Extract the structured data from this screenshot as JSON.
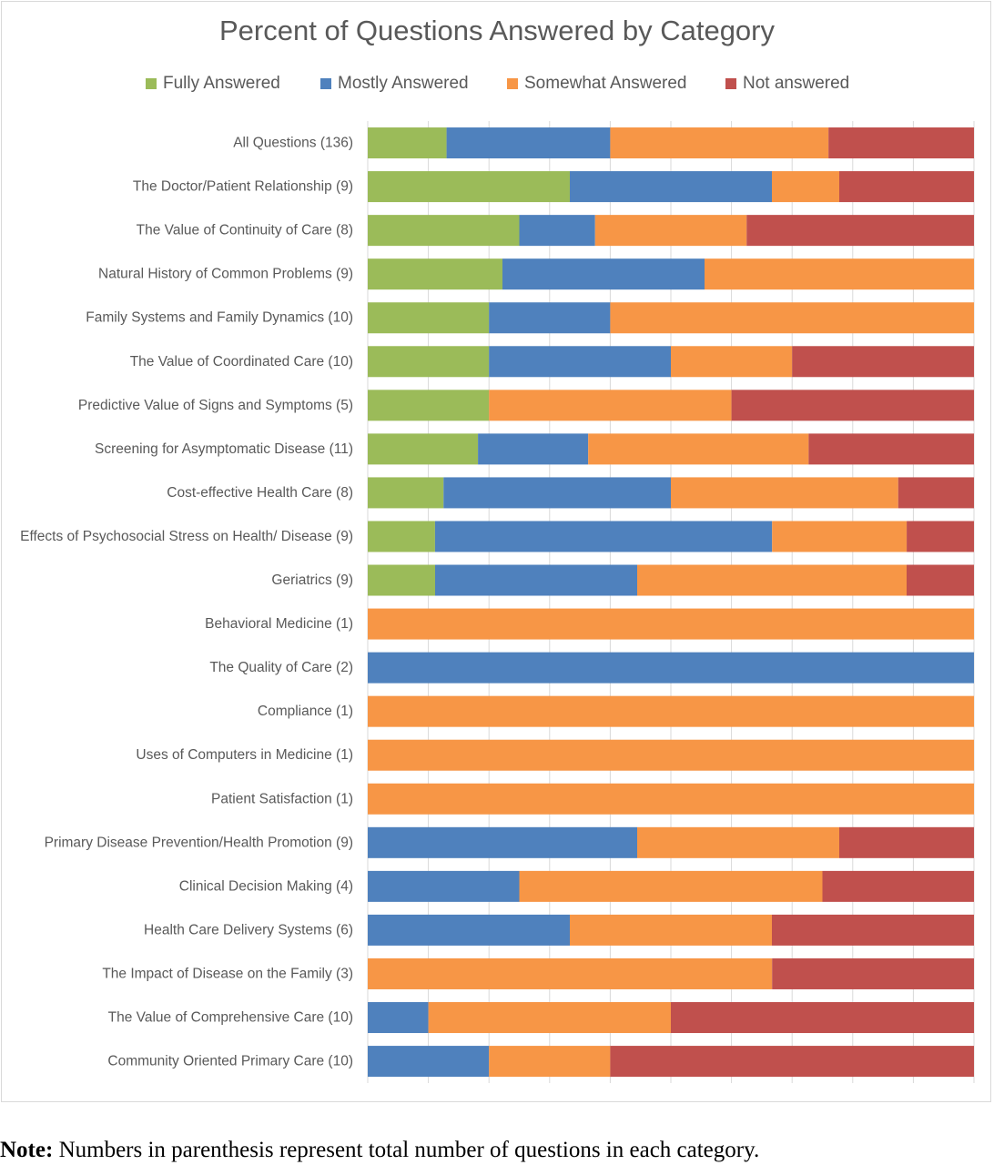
{
  "chart_data": {
    "type": "bar",
    "orientation": "horizontal",
    "stacked": true,
    "normalized": "100%",
    "title": "Percent of Questions Answered by Category",
    "legend_position": "top",
    "grid": "vertical",
    "xlim": [
      0,
      100
    ],
    "categories": [
      "All Questions (136)",
      "The Doctor/Patient Relationship (9)",
      "The Value of Continuity of Care (8)",
      "Natural History of Common Problems (9)",
      "Family Systems and Family Dynamics (10)",
      "The Value of Coordinated Care (10)",
      "Predictive Value of Signs and Symptoms (5)",
      "Screening for Asymptomatic Disease (11)",
      "Cost-effective Health Care (8)",
      "Effects of Psychosocial Stress on Health/ Disease (9)",
      "Geriatrics (9)",
      "Behavioral Medicine (1)",
      "The Quality of Care (2)",
      "Compliance (1)",
      "Uses of Computers in Medicine (1)",
      "Patient Satisfaction (1)",
      "Primary Disease Prevention/Health Promotion (9)",
      "Clinical Decision Making (4)",
      "Health Care Delivery Systems (6)",
      "The Impact of Disease on the Family (3)",
      "The Value of Comprehensive Care (10)",
      "Community Oriented Primary Care (10)"
    ],
    "series": [
      {
        "name": "Fully Answered",
        "color": "#9bbb59",
        "values": [
          13,
          33.3,
          25,
          22.2,
          20,
          20,
          20,
          18.2,
          12.5,
          11.1,
          11.1,
          0,
          0,
          0,
          0,
          0,
          0,
          0,
          0,
          0,
          0,
          0
        ]
      },
      {
        "name": "Mostly Answered",
        "color": "#4f81bd",
        "values": [
          27,
          33.3,
          12.5,
          33.3,
          20,
          30,
          0,
          18.2,
          37.5,
          55.6,
          33.3,
          0,
          100,
          0,
          0,
          0,
          44.4,
          25,
          33.3,
          0,
          10,
          20
        ]
      },
      {
        "name": "Somewhat Answered",
        "color": "#f79646",
        "values": [
          36,
          11.1,
          25,
          44.4,
          60,
          20,
          40,
          36.4,
          37.5,
          22.2,
          44.4,
          100,
          0,
          100,
          100,
          100,
          33.3,
          50,
          33.3,
          66.7,
          40,
          20
        ]
      },
      {
        "name": "Not answered",
        "color": "#c0504d",
        "values": [
          24,
          22.2,
          37.5,
          0,
          0,
          30,
          40,
          27.3,
          12.5,
          11.1,
          11.1,
          0,
          0,
          0,
          0,
          0,
          22.2,
          25,
          33.3,
          33.3,
          50,
          60
        ]
      }
    ]
  },
  "note": {
    "bold": "Note:",
    "text": " Numbers in parenthesis represent total number of questions in each category."
  }
}
